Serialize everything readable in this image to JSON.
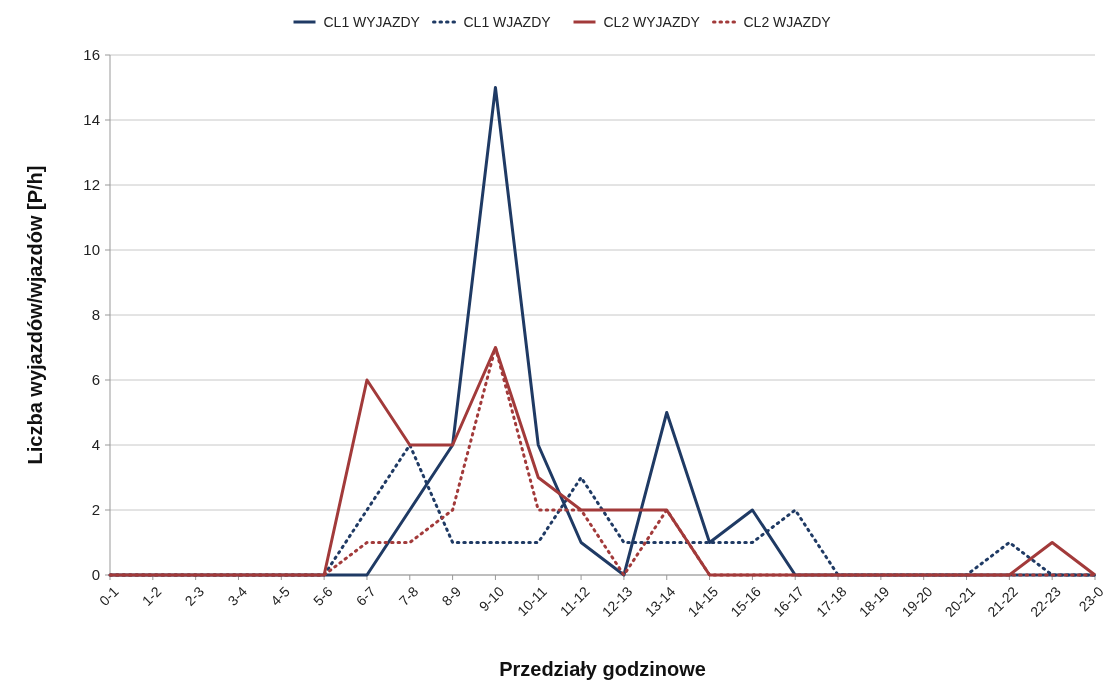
{
  "chart_data": {
    "type": "line",
    "xlabel": "Przedziały godzinowe",
    "ylabel": "Liczba wyjazdów/wjazdów [P/h]",
    "categories": [
      "0-1",
      "1-2",
      "2-3",
      "3-4",
      "4-5",
      "5-6",
      "6-7",
      "7-8",
      "8-9",
      "9-10",
      "10-11",
      "11-12",
      "12-13",
      "13-14",
      "14-15",
      "15-16",
      "16-17",
      "17-18",
      "18-19",
      "19-20",
      "20-21",
      "21-22",
      "22-23",
      "23-0"
    ],
    "series": [
      {
        "name": "CL1 WYJAZDY",
        "color": "#1f3a64",
        "line_style": "solid",
        "values": [
          0,
          0,
          0,
          0,
          0,
          0,
          0,
          2,
          4,
          15,
          4,
          1,
          0,
          5,
          1,
          2,
          0,
          0,
          0,
          0,
          0,
          0,
          0,
          0
        ]
      },
      {
        "name": "CL1 WJAZDY",
        "color": "#1f3a64",
        "line_style": "dotted",
        "values": [
          0,
          0,
          0,
          0,
          0,
          0,
          2,
          4,
          1,
          1,
          1,
          3,
          1,
          1,
          1,
          1,
          2,
          0,
          0,
          0,
          0,
          1,
          0,
          0
        ]
      },
      {
        "name": "CL2 WYJAZDY",
        "color": "#a23a3a",
        "line_style": "solid",
        "values": [
          0,
          0,
          0,
          0,
          0,
          0,
          6,
          4,
          4,
          7,
          3,
          2,
          2,
          2,
          0,
          0,
          0,
          0,
          0,
          0,
          0,
          0,
          1,
          0
        ]
      },
      {
        "name": "CL2 WJAZDY",
        "color": "#a23a3a",
        "line_style": "dotted",
        "values": [
          0,
          0,
          0,
          0,
          0,
          0,
          1,
          1,
          2,
          7,
          2,
          2,
          0,
          2,
          0,
          0,
          0,
          0,
          0,
          0,
          0,
          0,
          0,
          0
        ]
      }
    ],
    "ylim": [
      0,
      16
    ],
    "yticks": [
      0,
      2,
      4,
      6,
      8,
      10,
      12,
      14,
      16
    ],
    "grid": "y",
    "legend": "top",
    "marker": "none"
  }
}
